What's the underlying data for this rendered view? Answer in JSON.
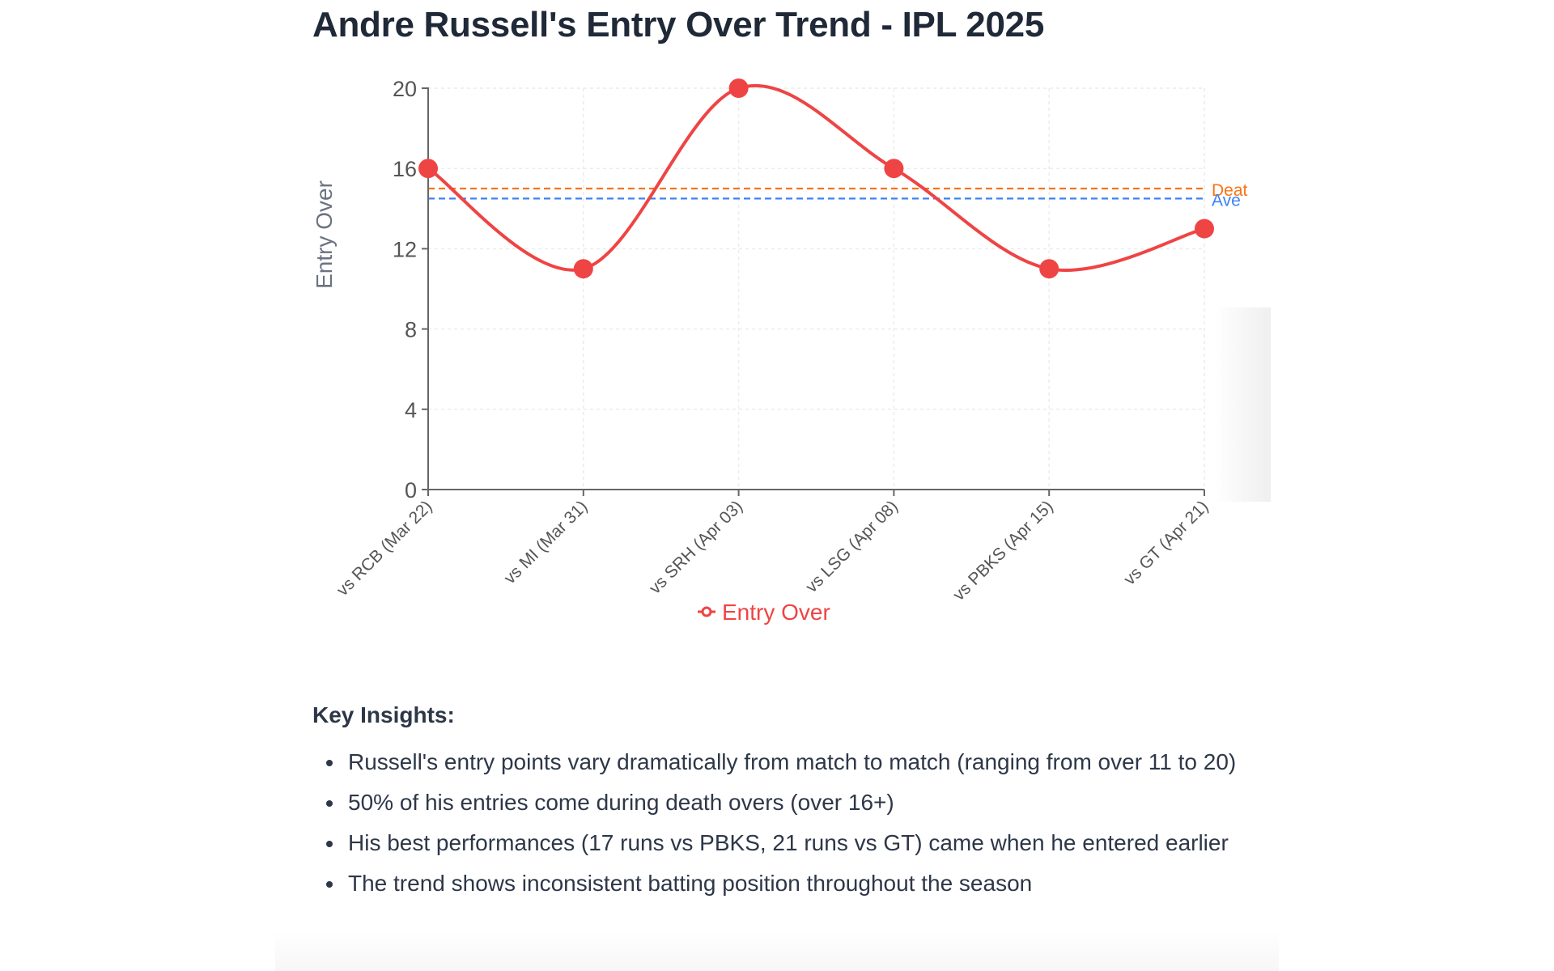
{
  "page": {
    "title": "Andre Russell's Entry Over Trend - IPL 2025"
  },
  "chart_data": {
    "type": "line",
    "title": "",
    "xlabel": "",
    "ylabel": "Entry Over",
    "categories": [
      "vs RCB (Mar 22)",
      "vs MI (Mar 31)",
      "vs SRH (Apr 03)",
      "vs LSG (Apr 08)",
      "vs PBKS (Apr 15)",
      "vs GT (Apr 21)"
    ],
    "series": [
      {
        "name": "Entry Over",
        "values": [
          16,
          11,
          20,
          16,
          11,
          13
        ],
        "color": "#ef4444"
      }
    ],
    "reference_lines": [
      {
        "label": "Deat",
        "value": 15,
        "color": "#f97316",
        "style": "dashed"
      },
      {
        "label": "Ave",
        "value": 14.5,
        "color": "#3b82f6",
        "style": "dashed"
      }
    ],
    "ylim": [
      0,
      20
    ],
    "yticks": [
      0,
      4,
      8,
      12,
      16,
      20
    ],
    "grid": true,
    "legend": "bottom-center",
    "curve": "smooth"
  },
  "insights": {
    "heading": "Key Insights:",
    "items": [
      "Russell's entry points vary dramatically from match to match (ranging from over 11 to 20)",
      "50% of his entries come during death overs (over 16+)",
      "His best performances (17 runs vs PBKS, 21 runs vs GT) came when he entered earlier",
      "The trend shows inconsistent batting position throughout the season"
    ]
  }
}
